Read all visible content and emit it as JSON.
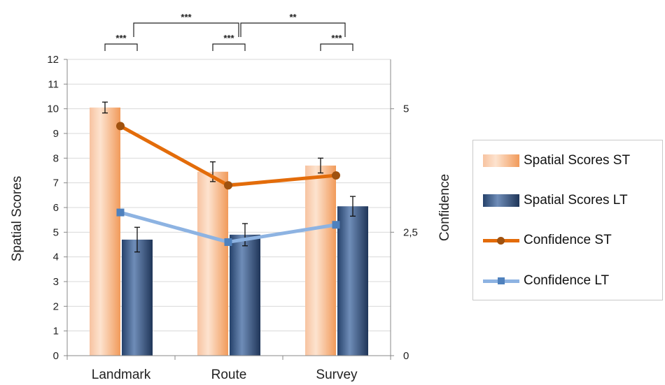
{
  "chart_data": {
    "type": "bar",
    "categories": [
      "Landmark",
      "Route",
      "Survey"
    ],
    "y_left": {
      "label": "Spatial Scores",
      "ylim": [
        0,
        12
      ],
      "ticks": [
        "0",
        "1",
        "2",
        "3",
        "4",
        "5",
        "6",
        "7",
        "8",
        "9",
        "10",
        "11",
        "12"
      ]
    },
    "y_right": {
      "label": "Confidence",
      "ylim": [
        0,
        6
      ],
      "ticks": [
        "0",
        "2,5",
        "5"
      ]
    },
    "bar_series": [
      {
        "name": "Spatial Scores ST",
        "values": [
          10.05,
          7.45,
          7.7
        ],
        "err": [
          0.22,
          0.4,
          0.3
        ],
        "color": "#f3a46b"
      },
      {
        "name": "Spatial Scores LT",
        "values": [
          4.7,
          4.9,
          6.05
        ],
        "err": [
          0.5,
          0.45,
          0.4
        ],
        "color": "#3a5a86"
      }
    ],
    "line_series": [
      {
        "name": "Confidence ST",
        "values": [
          4.65,
          3.45,
          3.65
        ],
        "color": "#e36c0a",
        "marker": "circle"
      },
      {
        "name": "Confidence LT",
        "values": [
          2.9,
          2.3,
          2.65
        ],
        "color": "#8db3e2",
        "marker": "square"
      }
    ],
    "significance": [
      {
        "label": "***",
        "from": "Landmark ST",
        "to": "Landmark LT"
      },
      {
        "label": "***",
        "from": "Route ST",
        "to": "Route LT"
      },
      {
        "label": "***",
        "from": "Survey ST",
        "to": "Survey LT"
      },
      {
        "label": "***",
        "from": "Landmark",
        "to": "Route"
      },
      {
        "label": "**",
        "from": "Route",
        "to": "Survey"
      }
    ],
    "legend_position": "right"
  }
}
